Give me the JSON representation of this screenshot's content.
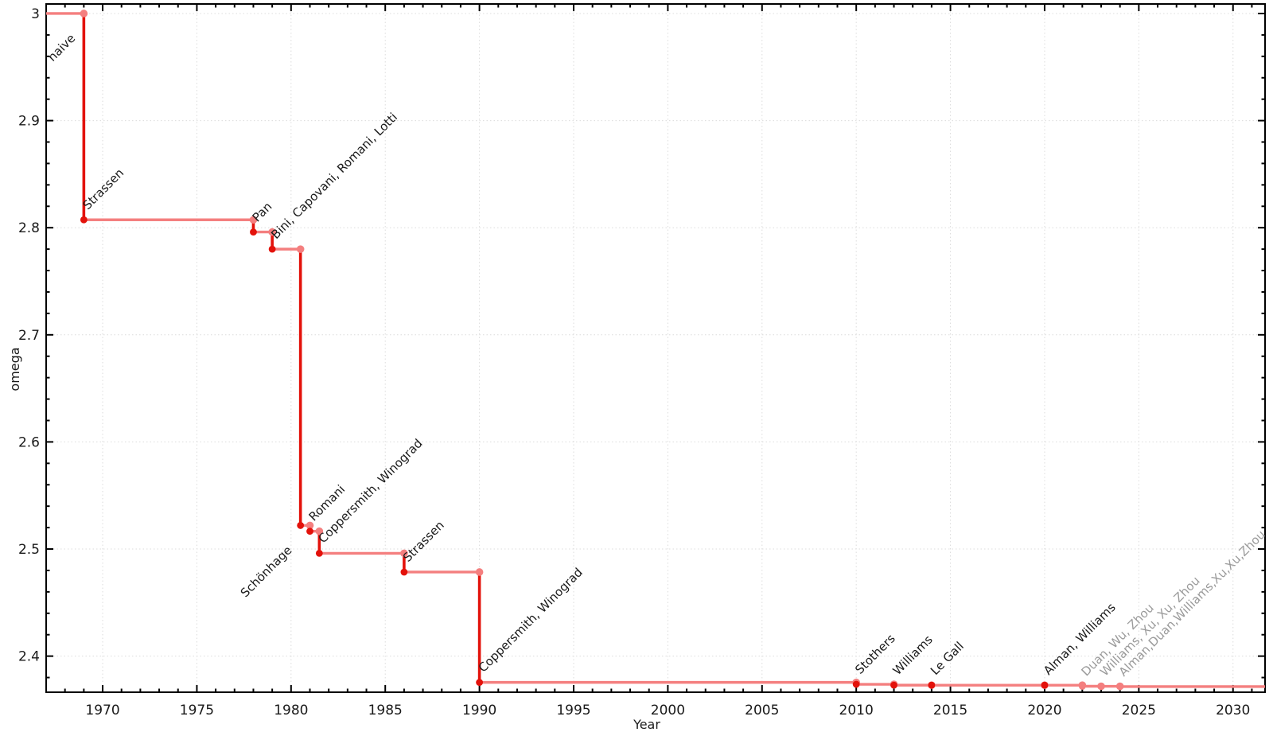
{
  "page": {
    "background": "#ffffff"
  },
  "chart_data": {
    "type": "line",
    "subtype": "step-post",
    "title": "",
    "xlabel": "Year",
    "ylabel": "omega",
    "xlim": [
      1967.0,
      2031.7
    ],
    "ylim": [
      2.3663,
      3.0089
    ],
    "x_major_ticks": [
      1970,
      1975,
      1980,
      1985,
      1990,
      1995,
      2000,
      2005,
      2010,
      2015,
      2020,
      2025,
      2030
    ],
    "x_minor_step": 1,
    "y_major_ticks": [
      3,
      2.9,
      2.8,
      2.7,
      2.6,
      2.5,
      2.4
    ],
    "y_tick_labels": [
      "3",
      "2.9",
      "2.8",
      "2.7",
      "2.6",
      "2.5",
      "2.4"
    ],
    "y_minor_step": 0.02,
    "grid": true,
    "legend_position": "none",
    "start_point": {
      "year": 1967.0,
      "omega": 3
    },
    "line_end_year": 2031.7,
    "points": [
      {
        "year": 1969,
        "omega": 2.8074,
        "label": "Strassen",
        "side": "above",
        "provisional": false
      },
      {
        "year": 1978,
        "omega": 2.796,
        "label": "Pan",
        "side": "above",
        "provisional": false
      },
      {
        "year": 1979,
        "omega": 2.78,
        "label": "Bini, Capovani, Romani, Lotti",
        "side": "above",
        "provisional": false
      },
      {
        "year": 1980.5,
        "omega": 2.522,
        "label": "Schönhage",
        "side": "below",
        "provisional": false
      },
      {
        "year": 1981,
        "omega": 2.5166,
        "label": "Romani",
        "side": "above",
        "provisional": false
      },
      {
        "year": 1981.5,
        "omega": 2.496,
        "label": "Coppersmith, Winograd",
        "side": "above",
        "provisional": false
      },
      {
        "year": 1986,
        "omega": 2.4785,
        "label": "Strassen",
        "side": "above",
        "provisional": false
      },
      {
        "year": 1990,
        "omega": 2.3755,
        "label": "Coppersmith, Winograd",
        "side": "above",
        "provisional": false
      },
      {
        "year": 2010,
        "omega": 2.3737,
        "label": "Stothers",
        "side": "above",
        "provisional": false
      },
      {
        "year": 2012,
        "omega": 2.3729,
        "label": "Williams",
        "side": "above",
        "provisional": false
      },
      {
        "year": 2014,
        "omega": 2.37286,
        "label": "Le Gall",
        "side": "above",
        "provisional": false
      },
      {
        "year": 2020,
        "omega": 2.37286,
        "label": "Alman, Williams",
        "side": "above",
        "provisional": false
      },
      {
        "year": 2022,
        "omega": 2.37188,
        "label": "Duan, Wu, Zhou",
        "side": "above",
        "provisional": true
      },
      {
        "year": 2023,
        "omega": 2.37186,
        "label": "Williams, Xu, Xu, Zhou",
        "side": "above",
        "provisional": true
      },
      {
        "year": 2024,
        "omega": 2.37155,
        "label": "Alman,Duan,Williams,Xu,Xu,Zhou",
        "side": "above",
        "provisional": true
      }
    ],
    "extra_annotations": [
      {
        "year": 1969,
        "omega": 3,
        "text": "naive",
        "side": "below",
        "provisional": false
      }
    ],
    "colors": {
      "line_strong": "#e3120b",
      "line_light": "#f47f7f",
      "dot_strong": "#e3120b",
      "dot_light": "#f47f7f",
      "label_dark": "#1a1a1a",
      "label_gray": "#9a9a9a",
      "grid": "#dcdcdc",
      "axis": "#000000",
      "background": "#ffffff"
    }
  }
}
